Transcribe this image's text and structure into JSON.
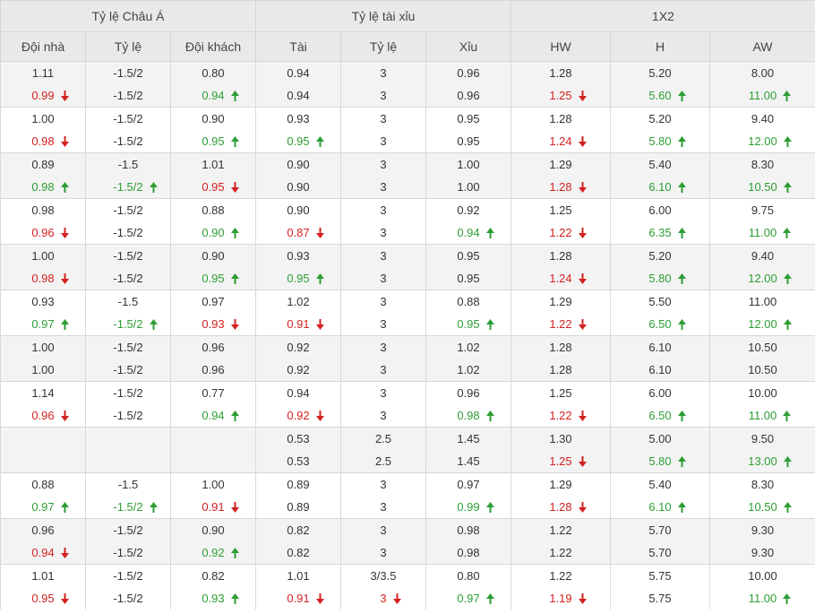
{
  "headers": {
    "group1": "Tỷ lệ Châu Á",
    "group2": "Tỷ lệ tài xỉu",
    "group3": "1X2",
    "cols": [
      "Đội nhà",
      "Tỷ lệ",
      "Đội khách",
      "Tài",
      "Tỷ lệ",
      "Xỉu",
      "HW",
      "H",
      "AW"
    ]
  },
  "colors": {
    "down": "#d42121",
    "up": "#2e9e35",
    "header_bg": "#e9e9e9",
    "row_alt_bg": "#f3f3f3"
  },
  "rows": [
    {
      "shade": true,
      "lines": [
        [
          {
            "v": "1.11"
          },
          {
            "v": "-1.5/2"
          },
          {
            "v": "0.80"
          },
          {
            "v": "0.94"
          },
          {
            "v": "3"
          },
          {
            "v": "0.96"
          },
          {
            "v": "1.28"
          },
          {
            "v": "5.20"
          },
          {
            "v": "8.00"
          }
        ],
        [
          {
            "v": "0.99",
            "t": "down"
          },
          {
            "v": "-1.5/2"
          },
          {
            "v": "0.94",
            "t": "up"
          },
          {
            "v": "0.94"
          },
          {
            "v": "3"
          },
          {
            "v": "0.96"
          },
          {
            "v": "1.25",
            "t": "down"
          },
          {
            "v": "5.60",
            "t": "up"
          },
          {
            "v": "11.00",
            "t": "up"
          }
        ]
      ]
    },
    {
      "shade": false,
      "lines": [
        [
          {
            "v": "1.00"
          },
          {
            "v": "-1.5/2"
          },
          {
            "v": "0.90"
          },
          {
            "v": "0.93"
          },
          {
            "v": "3"
          },
          {
            "v": "0.95"
          },
          {
            "v": "1.28"
          },
          {
            "v": "5.20"
          },
          {
            "v": "9.40"
          }
        ],
        [
          {
            "v": "0.98",
            "t": "down"
          },
          {
            "v": "-1.5/2"
          },
          {
            "v": "0.95",
            "t": "up"
          },
          {
            "v": "0.95",
            "t": "up"
          },
          {
            "v": "3"
          },
          {
            "v": "0.95"
          },
          {
            "v": "1.24",
            "t": "down"
          },
          {
            "v": "5.80",
            "t": "up"
          },
          {
            "v": "12.00",
            "t": "up"
          }
        ]
      ]
    },
    {
      "shade": true,
      "lines": [
        [
          {
            "v": "0.89"
          },
          {
            "v": "-1.5"
          },
          {
            "v": "1.01"
          },
          {
            "v": "0.90"
          },
          {
            "v": "3"
          },
          {
            "v": "1.00"
          },
          {
            "v": "1.29"
          },
          {
            "v": "5.40"
          },
          {
            "v": "8.30"
          }
        ],
        [
          {
            "v": "0.98",
            "t": "up"
          },
          {
            "v": "-1.5/2",
            "t": "up"
          },
          {
            "v": "0.95",
            "t": "down"
          },
          {
            "v": "0.90"
          },
          {
            "v": "3"
          },
          {
            "v": "1.00"
          },
          {
            "v": "1.28",
            "t": "down"
          },
          {
            "v": "6.10",
            "t": "up"
          },
          {
            "v": "10.50",
            "t": "up"
          }
        ]
      ]
    },
    {
      "shade": false,
      "lines": [
        [
          {
            "v": "0.98"
          },
          {
            "v": "-1.5/2"
          },
          {
            "v": "0.88"
          },
          {
            "v": "0.90"
          },
          {
            "v": "3"
          },
          {
            "v": "0.92"
          },
          {
            "v": "1.25"
          },
          {
            "v": "6.00"
          },
          {
            "v": "9.75"
          }
        ],
        [
          {
            "v": "0.96",
            "t": "down"
          },
          {
            "v": "-1.5/2"
          },
          {
            "v": "0.90",
            "t": "up"
          },
          {
            "v": "0.87",
            "t": "down"
          },
          {
            "v": "3"
          },
          {
            "v": "0.94",
            "t": "up"
          },
          {
            "v": "1.22",
            "t": "down"
          },
          {
            "v": "6.35",
            "t": "up"
          },
          {
            "v": "11.00",
            "t": "up"
          }
        ]
      ]
    },
    {
      "shade": true,
      "lines": [
        [
          {
            "v": "1.00"
          },
          {
            "v": "-1.5/2"
          },
          {
            "v": "0.90"
          },
          {
            "v": "0.93"
          },
          {
            "v": "3"
          },
          {
            "v": "0.95"
          },
          {
            "v": "1.28"
          },
          {
            "v": "5.20"
          },
          {
            "v": "9.40"
          }
        ],
        [
          {
            "v": "0.98",
            "t": "down"
          },
          {
            "v": "-1.5/2"
          },
          {
            "v": "0.95",
            "t": "up"
          },
          {
            "v": "0.95",
            "t": "up"
          },
          {
            "v": "3"
          },
          {
            "v": "0.95"
          },
          {
            "v": "1.24",
            "t": "down"
          },
          {
            "v": "5.80",
            "t": "up"
          },
          {
            "v": "12.00",
            "t": "up"
          }
        ]
      ]
    },
    {
      "shade": false,
      "lines": [
        [
          {
            "v": "0.93"
          },
          {
            "v": "-1.5"
          },
          {
            "v": "0.97"
          },
          {
            "v": "1.02"
          },
          {
            "v": "3"
          },
          {
            "v": "0.88"
          },
          {
            "v": "1.29"
          },
          {
            "v": "5.50"
          },
          {
            "v": "11.00"
          }
        ],
        [
          {
            "v": "0.97",
            "t": "up"
          },
          {
            "v": "-1.5/2",
            "t": "up"
          },
          {
            "v": "0.93",
            "t": "down"
          },
          {
            "v": "0.91",
            "t": "down"
          },
          {
            "v": "3"
          },
          {
            "v": "0.95",
            "t": "up"
          },
          {
            "v": "1.22",
            "t": "down"
          },
          {
            "v": "6.50",
            "t": "up"
          },
          {
            "v": "12.00",
            "t": "up"
          }
        ]
      ]
    },
    {
      "shade": true,
      "lines": [
        [
          {
            "v": "1.00"
          },
          {
            "v": "-1.5/2"
          },
          {
            "v": "0.96"
          },
          {
            "v": "0.92"
          },
          {
            "v": "3"
          },
          {
            "v": "1.02"
          },
          {
            "v": "1.28"
          },
          {
            "v": "6.10"
          },
          {
            "v": "10.50"
          }
        ],
        [
          {
            "v": "1.00"
          },
          {
            "v": "-1.5/2"
          },
          {
            "v": "0.96"
          },
          {
            "v": "0.92"
          },
          {
            "v": "3"
          },
          {
            "v": "1.02"
          },
          {
            "v": "1.28"
          },
          {
            "v": "6.10"
          },
          {
            "v": "10.50"
          }
        ]
      ]
    },
    {
      "shade": false,
      "lines": [
        [
          {
            "v": "1.14"
          },
          {
            "v": "-1.5/2"
          },
          {
            "v": "0.77"
          },
          {
            "v": "0.94"
          },
          {
            "v": "3"
          },
          {
            "v": "0.96"
          },
          {
            "v": "1.25"
          },
          {
            "v": "6.00"
          },
          {
            "v": "10.00"
          }
        ],
        [
          {
            "v": "0.96",
            "t": "down"
          },
          {
            "v": "-1.5/2"
          },
          {
            "v": "0.94",
            "t": "up"
          },
          {
            "v": "0.92",
            "t": "down"
          },
          {
            "v": "3"
          },
          {
            "v": "0.98",
            "t": "up"
          },
          {
            "v": "1.22",
            "t": "down"
          },
          {
            "v": "6.50",
            "t": "up"
          },
          {
            "v": "11.00",
            "t": "up"
          }
        ]
      ]
    },
    {
      "shade": true,
      "lines": [
        [
          {
            "v": ""
          },
          {
            "v": ""
          },
          {
            "v": ""
          },
          {
            "v": "0.53"
          },
          {
            "v": "2.5"
          },
          {
            "v": "1.45"
          },
          {
            "v": "1.30"
          },
          {
            "v": "5.00"
          },
          {
            "v": "9.50"
          }
        ],
        [
          {
            "v": ""
          },
          {
            "v": ""
          },
          {
            "v": ""
          },
          {
            "v": "0.53"
          },
          {
            "v": "2.5"
          },
          {
            "v": "1.45"
          },
          {
            "v": "1.25",
            "t": "down"
          },
          {
            "v": "5.80",
            "t": "up"
          },
          {
            "v": "13.00",
            "t": "up"
          }
        ]
      ]
    },
    {
      "shade": false,
      "lines": [
        [
          {
            "v": "0.88"
          },
          {
            "v": "-1.5"
          },
          {
            "v": "1.00"
          },
          {
            "v": "0.89"
          },
          {
            "v": "3"
          },
          {
            "v": "0.97"
          },
          {
            "v": "1.29"
          },
          {
            "v": "5.40"
          },
          {
            "v": "8.30"
          }
        ],
        [
          {
            "v": "0.97",
            "t": "up"
          },
          {
            "v": "-1.5/2",
            "t": "up"
          },
          {
            "v": "0.91",
            "t": "down"
          },
          {
            "v": "0.89"
          },
          {
            "v": "3"
          },
          {
            "v": "0.99",
            "t": "up"
          },
          {
            "v": "1.28",
            "t": "down"
          },
          {
            "v": "6.10",
            "t": "up"
          },
          {
            "v": "10.50",
            "t": "up"
          }
        ]
      ]
    },
    {
      "shade": true,
      "lines": [
        [
          {
            "v": "0.96"
          },
          {
            "v": "-1.5/2"
          },
          {
            "v": "0.90"
          },
          {
            "v": "0.82"
          },
          {
            "v": "3"
          },
          {
            "v": "0.98"
          },
          {
            "v": "1.22"
          },
          {
            "v": "5.70"
          },
          {
            "v": "9.30"
          }
        ],
        [
          {
            "v": "0.94",
            "t": "down"
          },
          {
            "v": "-1.5/2"
          },
          {
            "v": "0.92",
            "t": "up"
          },
          {
            "v": "0.82"
          },
          {
            "v": "3"
          },
          {
            "v": "0.98"
          },
          {
            "v": "1.22"
          },
          {
            "v": "5.70"
          },
          {
            "v": "9.30"
          }
        ]
      ]
    },
    {
      "shade": false,
      "lines": [
        [
          {
            "v": "1.01"
          },
          {
            "v": "-1.5/2"
          },
          {
            "v": "0.82"
          },
          {
            "v": "1.01"
          },
          {
            "v": "3/3.5"
          },
          {
            "v": "0.80"
          },
          {
            "v": "1.22"
          },
          {
            "v": "5.75"
          },
          {
            "v": "10.00"
          }
        ],
        [
          {
            "v": "0.95",
            "t": "down"
          },
          {
            "v": "-1.5/2"
          },
          {
            "v": "0.93",
            "t": "up"
          },
          {
            "v": "0.91",
            "t": "down"
          },
          {
            "v": "3",
            "t": "down"
          },
          {
            "v": "0.97",
            "t": "up"
          },
          {
            "v": "1.19",
            "t": "down"
          },
          {
            "v": "5.75"
          },
          {
            "v": "11.00",
            "t": "up"
          }
        ]
      ]
    }
  ]
}
